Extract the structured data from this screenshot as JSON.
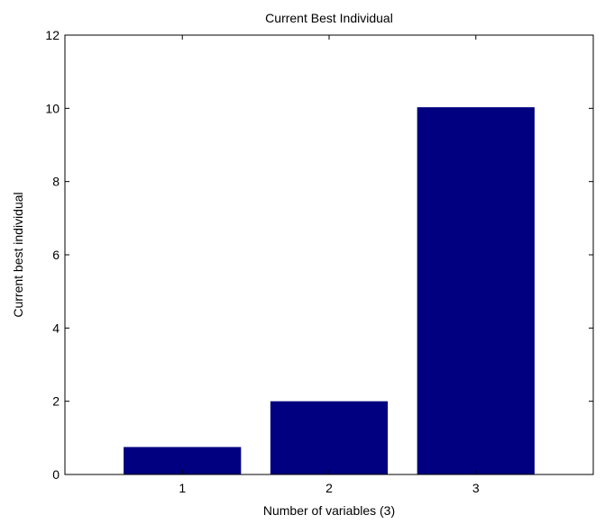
{
  "chart_data": {
    "type": "bar",
    "title": "Current Best Individual",
    "xlabel": "Number of variables (3)",
    "ylabel": "Current best individual",
    "categories": [
      "1",
      "2",
      "3"
    ],
    "values": [
      0.75,
      2.0,
      10.03
    ],
    "ylim": [
      0,
      12
    ],
    "xlim": [
      0.2,
      3.8
    ],
    "yticks": [
      0,
      2,
      4,
      6,
      8,
      10,
      12
    ],
    "grid": false,
    "legend": "none",
    "bar_color": "#000080"
  }
}
